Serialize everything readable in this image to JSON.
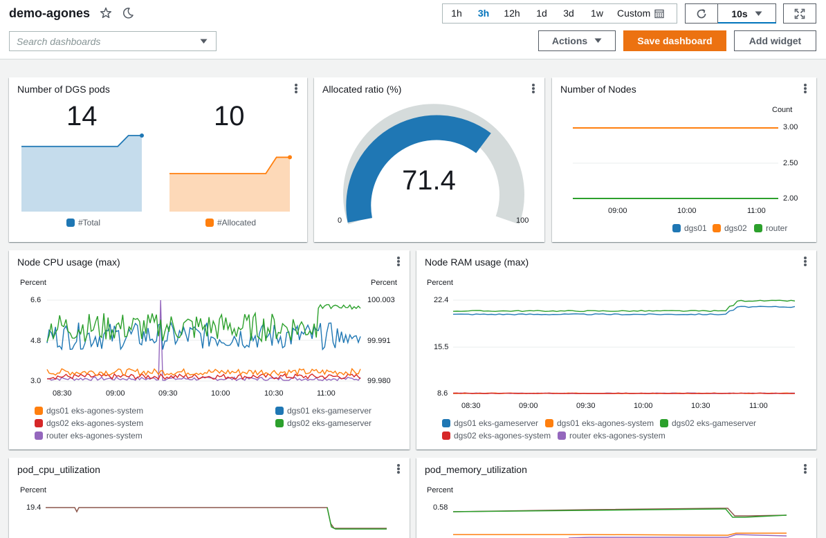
{
  "header": {
    "title": "demo-agones",
    "time_ranges": [
      "1h",
      "3h",
      "12h",
      "1d",
      "3d",
      "1w"
    ],
    "active_range": "3h",
    "custom_label": "Custom",
    "refresh_interval": "10s",
    "search_placeholder": "Search dashboards",
    "actions_label": "Actions",
    "save_label": "Save dashboard",
    "add_widget_label": "Add widget"
  },
  "colors": {
    "blue": "#1f77b4",
    "orange": "#ff7f0e",
    "green": "#2ca02c",
    "red": "#d62728",
    "purple": "#9467bd",
    "brand_orange": "#ec7211",
    "active_blue": "#0073bb"
  },
  "widgets": {
    "dgs_pods": {
      "title": "Number of DGS pods",
      "total_value": "14",
      "allocated_value": "10",
      "legend_total": "#Total",
      "legend_allocated": "#Allocated"
    },
    "allocated_ratio": {
      "title": "Allocated ratio (%)",
      "value": "71.4",
      "min_label": "0",
      "max_label": "100"
    },
    "nodes": {
      "title": "Number of Nodes",
      "ylabel": "Count",
      "yticks": [
        "3.00",
        "2.50",
        "2.00"
      ],
      "xticks": [
        "09:00",
        "10:00",
        "11:00"
      ],
      "legend": [
        "dgs01",
        "dgs02",
        "router"
      ]
    },
    "cpu": {
      "title": "Node CPU usage (max)",
      "ylabel_left": "Percent",
      "ylabel_right": "Percent",
      "yticks_left": [
        "6.6",
        "4.8",
        "3.0"
      ],
      "yticks_right": [
        "100.003",
        "99.991",
        "99.980"
      ],
      "xticks": [
        "08:30",
        "09:00",
        "09:30",
        "10:00",
        "10:30",
        "11:00"
      ],
      "legend": [
        "dgs01 eks-agones-system",
        "dgs01 eks-gameserver",
        "dgs02 eks-agones-system",
        "dgs02 eks-gameserver",
        "router eks-agones-system"
      ]
    },
    "ram": {
      "title": "Node RAM usage (max)",
      "ylabel": "Percent",
      "yticks": [
        "22.4",
        "15.5",
        "8.6"
      ],
      "xticks": [
        "08:30",
        "09:00",
        "09:30",
        "10:00",
        "10:30",
        "11:00"
      ],
      "legend": [
        "dgs01 eks-gameserver",
        "dgs01 eks-agones-system",
        "dgs02 eks-gameserver",
        "dgs02 eks-agones-system",
        "router eks-agones-system"
      ]
    },
    "pod_cpu": {
      "title": "pod_cpu_utilization",
      "ylabel": "Percent",
      "ytick": "19.4"
    },
    "pod_mem": {
      "title": "pod_memory_utilization",
      "ylabel": "Percent",
      "ytick": "0.58"
    }
  },
  "chart_data": [
    {
      "type": "area",
      "series": [
        {
          "name": "#Total",
          "values": [
            12,
            12,
            12,
            12,
            12,
            12,
            12,
            12,
            14,
            14
          ]
        },
        {
          "name": "#Allocated",
          "values": [
            7,
            7,
            7,
            7,
            7,
            7,
            7,
            7,
            10,
            10
          ]
        }
      ]
    },
    {
      "type": "line",
      "ylabel": "Count",
      "ylim": [
        2.0,
        3.0
      ],
      "series": [
        {
          "name": "dgs01",
          "values": [
            3,
            3
          ]
        },
        {
          "name": "dgs02",
          "values": [
            3,
            3
          ]
        },
        {
          "name": "router",
          "values": [
            2,
            2
          ]
        }
      ]
    },
    {
      "type": "line",
      "ylabel": "Percent",
      "ylim": [
        3.0,
        6.6
      ],
      "xticks": [
        "08:30",
        "09:00",
        "09:30",
        "10:00",
        "10:30",
        "11:00"
      ],
      "series": [
        {
          "name": "dgs01 eks-agones-system",
          "level": 3.4
        },
        {
          "name": "dgs01 eks-gameserver",
          "level": 5.0
        },
        {
          "name": "dgs02 eks-agones-system",
          "level": 3.2
        },
        {
          "name": "dgs02 eks-gameserver",
          "level": 5.4
        },
        {
          "name": "router eks-agones-system",
          "level": 3.1
        }
      ]
    },
    {
      "type": "line",
      "ylabel": "Percent",
      "ylim": [
        8.6,
        22.4
      ],
      "xticks": [
        "08:30",
        "09:00",
        "09:30",
        "10:00",
        "10:30",
        "11:00"
      ],
      "series": [
        {
          "name": "dgs01 eks-gameserver",
          "start": 20.3,
          "end": 21.4
        },
        {
          "name": "dgs01 eks-agones-system",
          "start": 8.6,
          "end": 8.6
        },
        {
          "name": "dgs02 eks-gameserver",
          "start": 20.8,
          "end": 22.3
        },
        {
          "name": "dgs02 eks-agones-system",
          "start": 8.6,
          "end": 8.6
        },
        {
          "name": "router eks-agones-system",
          "start": 8.6,
          "end": 8.6
        }
      ]
    }
  ]
}
